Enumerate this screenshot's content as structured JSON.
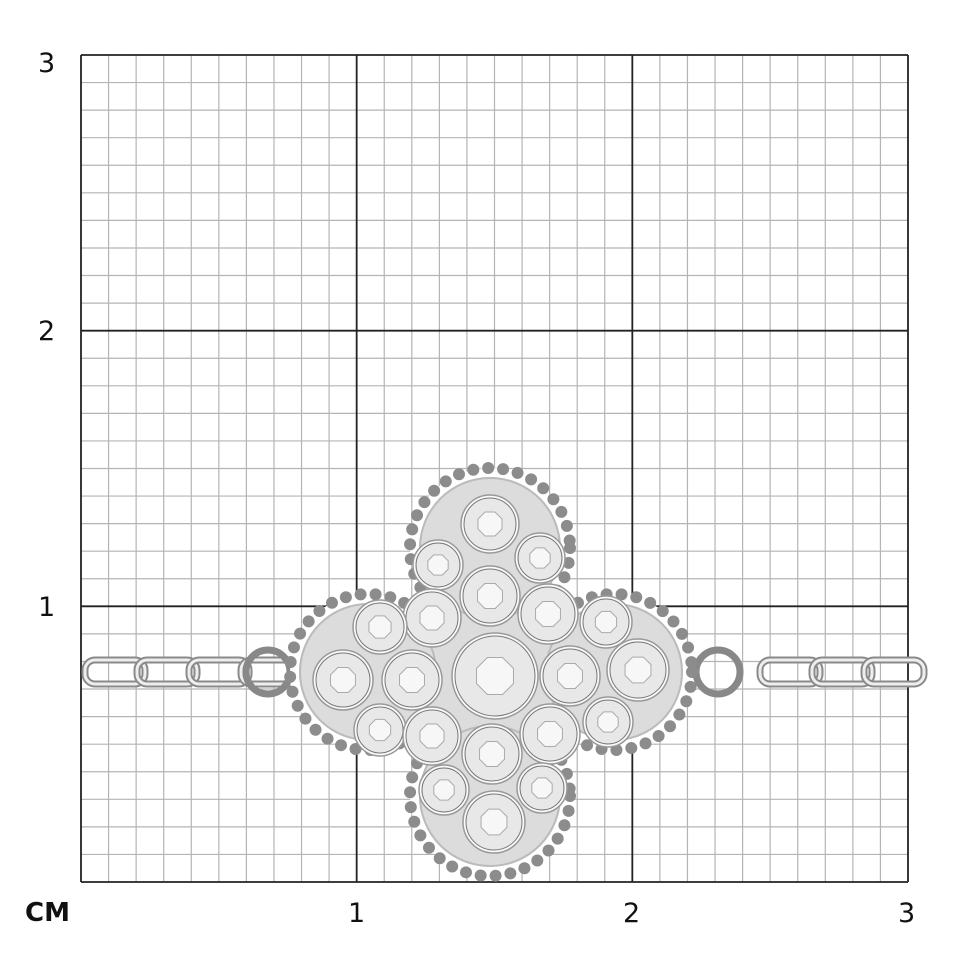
{
  "scale": {
    "unit_label": "CM",
    "x_ticks": [
      "1",
      "2",
      "3"
    ],
    "y_ticks": [
      "3",
      "2",
      "1"
    ],
    "range_cm": [
      0,
      3
    ],
    "subdivisions_per_cm": 10
  },
  "colors": {
    "major_grid": "#222222",
    "minor_grid": "#b4b4b4",
    "metal": "#9a9a9a",
    "stone": "#e8e8e8"
  },
  "product": {
    "type-icon": "clover-pendant-bracelet"
  }
}
